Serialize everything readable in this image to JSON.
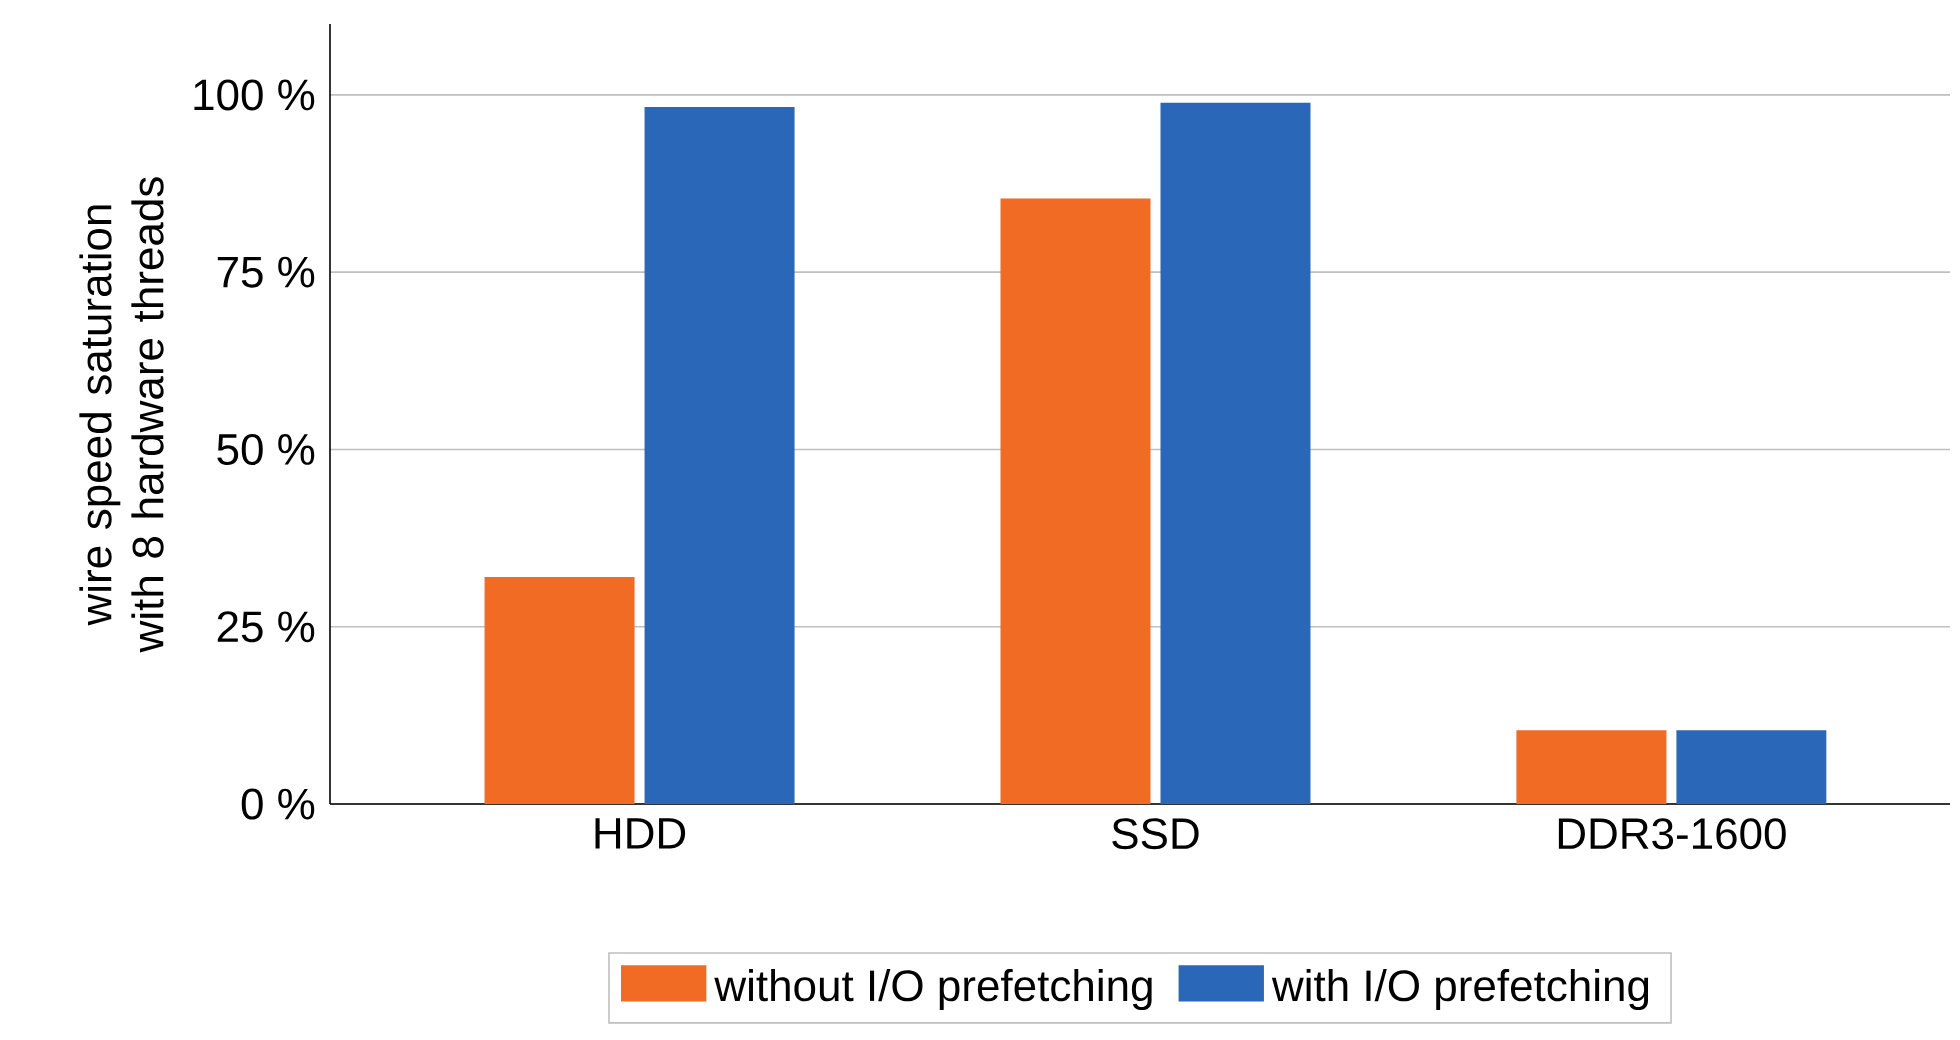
{
  "chart_data": {
    "type": "bar",
    "ylabel": "wire speed saturation\nwith 8 hardware threads",
    "categories": [
      "HDD",
      "SSD",
      "DDR3-1600"
    ],
    "series": [
      {
        "name": "without  I/O prefetching",
        "color": "#f26b24",
        "values": [
          32,
          85.4,
          10.4
        ]
      },
      {
        "name": "with I/O prefetching",
        "color": "#2a67b8",
        "values": [
          98.3,
          98.9,
          10.4
        ]
      }
    ],
    "ylim": [
      0,
      110
    ],
    "yticks": [
      {
        "value": 0,
        "label": "0 %"
      },
      {
        "value": 25,
        "label": "25 %"
      },
      {
        "value": 50,
        "label": "50 %"
      },
      {
        "value": 75,
        "label": "75 %"
      },
      {
        "value": 100,
        "label": "100 %"
      }
    ],
    "grid": "y",
    "legend": "bottom"
  }
}
